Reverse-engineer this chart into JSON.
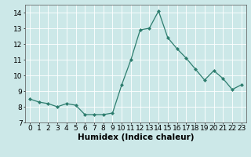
{
  "x": [
    0,
    1,
    2,
    3,
    4,
    5,
    6,
    7,
    8,
    9,
    10,
    11,
    12,
    13,
    14,
    15,
    16,
    17,
    18,
    19,
    20,
    21,
    22,
    23
  ],
  "y": [
    8.5,
    8.3,
    8.2,
    8.0,
    8.2,
    8.1,
    7.5,
    7.5,
    7.5,
    7.6,
    9.4,
    11.0,
    12.9,
    13.0,
    14.1,
    12.4,
    11.7,
    11.1,
    10.4,
    9.7,
    10.3,
    9.8,
    9.1,
    9.4
  ],
  "xlabel": "Humidex (Indice chaleur)",
  "ylim": [
    7,
    14.5
  ],
  "xlim": [
    -0.5,
    23.5
  ],
  "yticks": [
    7,
    8,
    9,
    10,
    11,
    12,
    13,
    14
  ],
  "xticks": [
    0,
    1,
    2,
    3,
    4,
    5,
    6,
    7,
    8,
    9,
    10,
    11,
    12,
    13,
    14,
    15,
    16,
    17,
    18,
    19,
    20,
    21,
    22,
    23
  ],
  "line_color": "#2d7d6e",
  "marker_color": "#2d7d6e",
  "bg_color": "#cce8e8",
  "grid_color": "#b8d8d8",
  "xlabel_fontsize": 7.5,
  "tick_fontsize": 6.5
}
